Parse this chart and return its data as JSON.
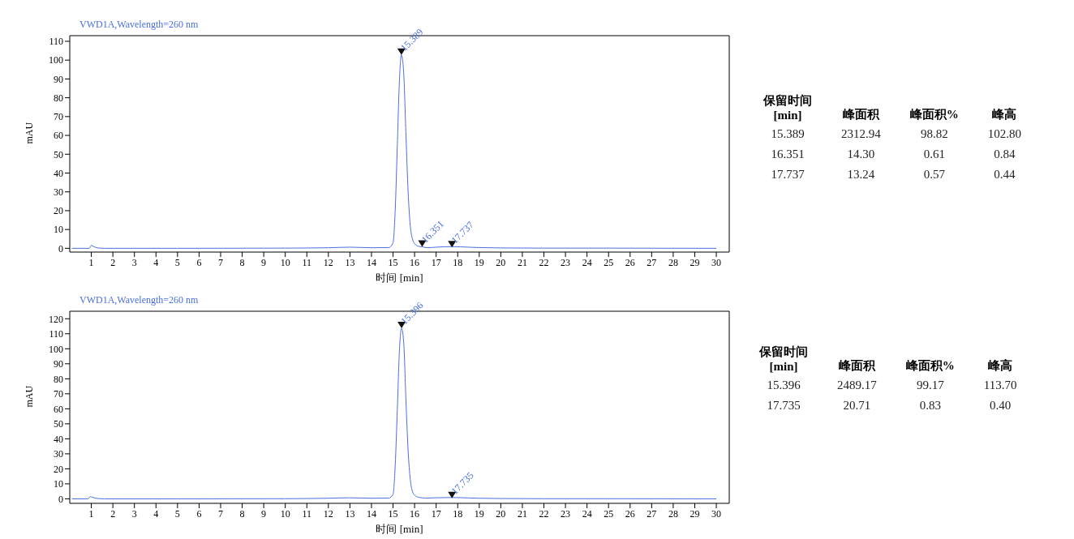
{
  "chart_data": [
    {
      "type": "line",
      "title": "VWD1A,Wavelength=260 nm",
      "xlabel": "时间 [min]",
      "ylabel": "mAU",
      "xlim": [
        0,
        30.6
      ],
      "ylim": [
        -2,
        113
      ],
      "xticks": [
        1,
        2,
        3,
        4,
        5,
        6,
        7,
        8,
        9,
        10,
        11,
        12,
        13,
        14,
        15,
        16,
        17,
        18,
        19,
        20,
        21,
        22,
        23,
        24,
        25,
        26,
        27,
        28,
        29,
        30
      ],
      "yticks": [
        0,
        10,
        20,
        30,
        40,
        50,
        60,
        70,
        80,
        90,
        100,
        110
      ],
      "grid": false,
      "legend": false,
      "marker": "none",
      "line_style": "solid",
      "series": [
        {
          "color": "#4a6ee0",
          "x": [
            0.1,
            0.9,
            1.0,
            1.1,
            1.3,
            1.6,
            5,
            10,
            12,
            13,
            14,
            14.8,
            15.0,
            15.1,
            15.2,
            15.3,
            15.389,
            15.5,
            15.6,
            15.7,
            15.8,
            15.9,
            16.0,
            16.2,
            16.351,
            16.6,
            17,
            17.737,
            18.5,
            19,
            20,
            22,
            25,
            30
          ],
          "values": [
            0,
            0,
            1.5,
            1,
            0.2,
            0,
            0,
            0.1,
            0.3,
            0.6,
            0.3,
            0.4,
            3,
            20,
            55,
            90,
            102.8,
            92,
            60,
            30,
            12,
            5,
            2.5,
            1,
            0.8,
            0.3,
            0.6,
            0.9,
            0.6,
            0.4,
            0.2,
            0.1,
            0.1,
            0
          ]
        }
      ],
      "annotations": [
        {
          "text": "15.389",
          "x": 15.389,
          "y": 102.8
        },
        {
          "text": "16.351",
          "x": 16.351,
          "y": 0.84
        },
        {
          "text": "17.737",
          "x": 17.737,
          "y": 0.44
        }
      ]
    },
    {
      "type": "other",
      "categories": [
        "保留时间\n[min]",
        "峰面积",
        "峰面积%",
        "峰高"
      ],
      "cell_labels": [
        [
          "15.389",
          "2312.94",
          "98.82",
          "102.80"
        ],
        [
          "16.351",
          "14.30",
          "0.61",
          "0.84"
        ],
        [
          "17.737",
          "13.24",
          "0.57",
          "0.44"
        ]
      ]
    },
    {
      "type": "line",
      "title": "VWD1A,Wavelength=260 nm",
      "xlabel": "时间 [min]",
      "ylabel": "mAU",
      "xlim": [
        0,
        30.6
      ],
      "ylim": [
        -3,
        125
      ],
      "xticks": [
        1,
        2,
        3,
        4,
        5,
        6,
        7,
        8,
        9,
        10,
        11,
        12,
        13,
        14,
        15,
        16,
        17,
        18,
        19,
        20,
        21,
        22,
        23,
        24,
        25,
        26,
        27,
        28,
        29,
        30
      ],
      "yticks": [
        0,
        10,
        20,
        30,
        40,
        50,
        60,
        70,
        80,
        90,
        100,
        110,
        120
      ],
      "grid": false,
      "legend": false,
      "marker": "none",
      "line_style": "solid",
      "series": [
        {
          "color": "#4a6ee0",
          "x": [
            0.1,
            0.85,
            0.95,
            1.05,
            1.3,
            1.6,
            5,
            10,
            12,
            13,
            14,
            14.8,
            15.0,
            15.1,
            15.2,
            15.3,
            15.396,
            15.5,
            15.6,
            15.7,
            15.8,
            15.9,
            16.0,
            16.2,
            16.5,
            17,
            17.735,
            18.5,
            19,
            20,
            22,
            25,
            30
          ],
          "values": [
            0,
            0,
            1.5,
            1,
            0.2,
            0,
            0,
            0.1,
            0.4,
            0.7,
            0.4,
            0.5,
            3,
            22,
            60,
            100,
            113.7,
            103,
            65,
            32,
            13,
            5,
            2.5,
            1,
            0.5,
            0.7,
            0.9,
            0.6,
            0.4,
            0.2,
            0.1,
            0.1,
            0
          ]
        }
      ],
      "annotations": [
        {
          "text": "15.396",
          "x": 15.396,
          "y": 113.7
        },
        {
          "text": "17.735",
          "x": 17.735,
          "y": 0.4
        }
      ]
    },
    {
      "type": "other",
      "categories": [
        "保留时间\n[min]",
        "峰面积",
        "峰面积%",
        "峰高"
      ],
      "cell_labels": [
        [
          "15.396",
          "2489.17",
          "99.17",
          "113.70"
        ],
        [
          "17.735",
          "20.71",
          "0.83",
          "0.40"
        ]
      ]
    }
  ]
}
